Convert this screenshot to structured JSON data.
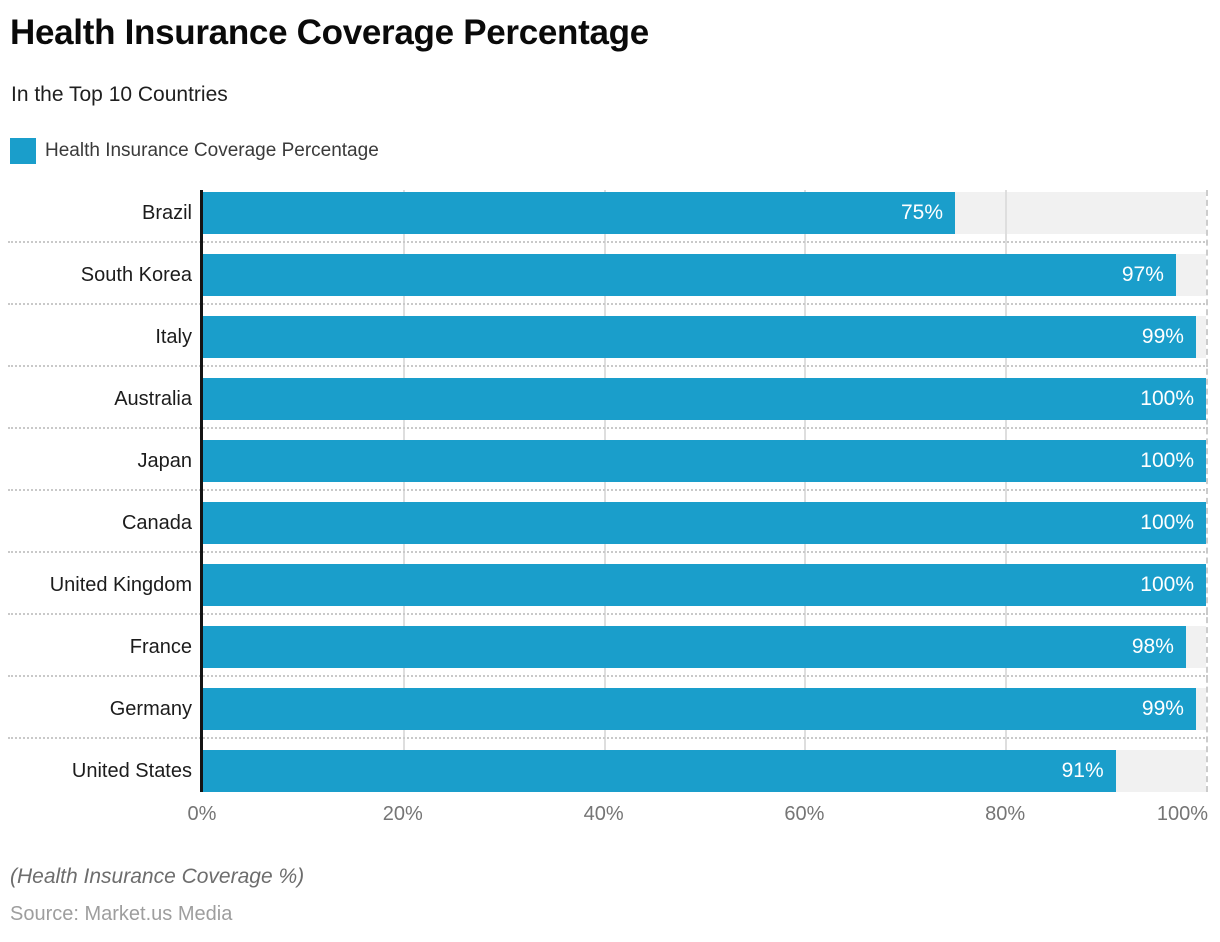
{
  "title": "Health Insurance Coverage Percentage",
  "subtitle": "In the Top 10 Countries",
  "legend": {
    "label": "Health Insurance Coverage Percentage",
    "color": "#1a9ecb"
  },
  "footnote": "(Health Insurance Coverage %)",
  "source": "Source: Market.us Media",
  "chart_data": {
    "type": "bar",
    "orientation": "horizontal",
    "title": "Health Insurance Coverage Percentage",
    "subtitle": "In the Top 10 Countries",
    "categories": [
      "Brazil",
      "South Korea",
      "Italy",
      "Australia",
      "Japan",
      "Canada",
      "United Kingdom",
      "France",
      "Germany",
      "United States"
    ],
    "values": [
      75,
      97,
      99,
      100,
      100,
      100,
      100,
      98,
      99,
      91
    ],
    "value_labels": [
      "75%",
      "97%",
      "99%",
      "100%",
      "100%",
      "100%",
      "100%",
      "98%",
      "99%",
      "91%"
    ],
    "xlabel": "",
    "ylabel": "",
    "xlim": [
      0,
      100
    ],
    "tick_values": [
      0,
      20,
      40,
      60,
      80,
      100
    ],
    "x_ticks": [
      "0%",
      "20%",
      "40%",
      "60%",
      "80%",
      "100%"
    ],
    "grid": true,
    "legend_position": "top-left",
    "bar_color": "#1a9ecb",
    "track_color": "#f1f1f1",
    "axis_line_color": "#141414",
    "gridline_color": "#dedede"
  }
}
